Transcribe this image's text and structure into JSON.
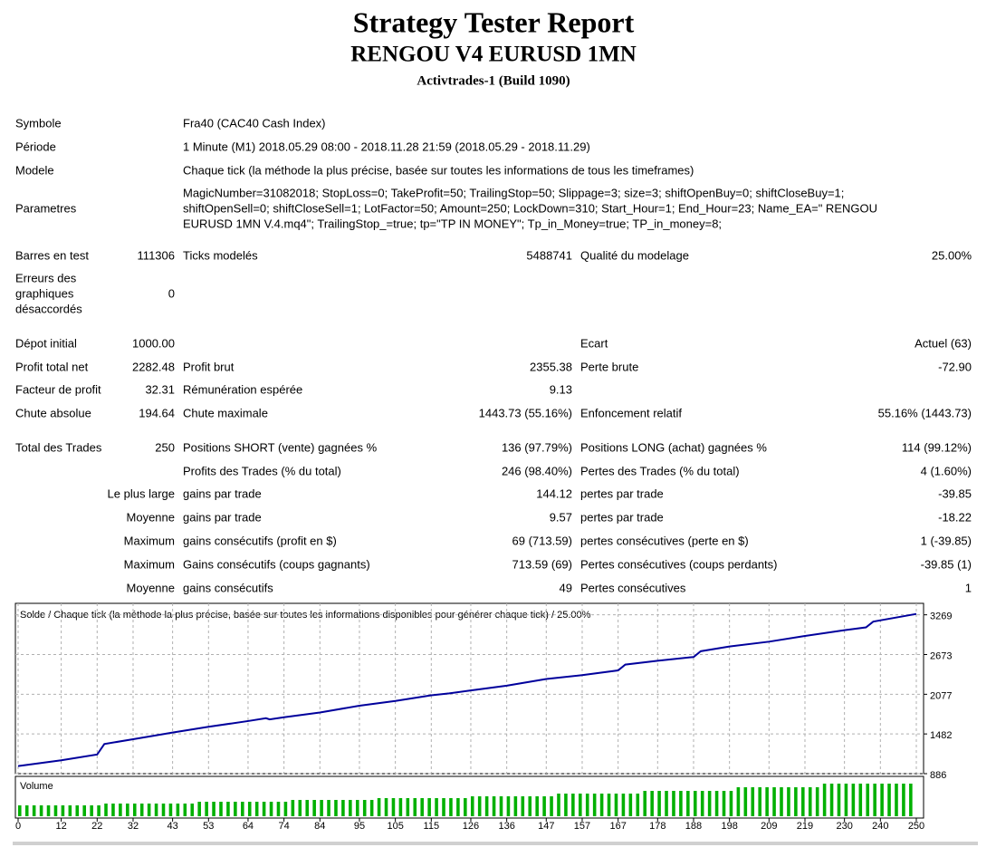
{
  "header": {
    "title": "Strategy Tester Report",
    "subtitle": "RENGOU V4 EURUSD 1MN",
    "server": "Activtrades-1 (Build 1090)"
  },
  "report": {
    "rows": [
      {
        "l1": "Symbole",
        "l2": "Fra40 (CAC40 Cash Index)"
      },
      {
        "l1": "Période",
        "l2": "1 Minute (M1) 2018.05.29 08:00 - 2018.11.28 21:59 (2018.05.29 - 2018.11.29)"
      },
      {
        "l1": "Modele",
        "l2": "Chaque tick (la méthode la plus précise, basée sur toutes les informations de tous les timeframes)"
      },
      {
        "l1": "Parametres",
        "l2": [
          "MagicNumber=31082018; StopLoss=0; TakeProfit=50; TrailingStop=50; Slippage=3; size=3; shiftOpenBuy=0; shiftCloseBuy=1;",
          "shiftOpenSell=0; shiftCloseSell=1; LotFactor=50; Amount=250; LockDown=310; Start_Hour=1; End_Hour=23; Name_EA=\" RENGOU",
          "EURUSD 1MN V.4.mq4\"; TrailingStop_=true; tp=\"TP IN MONEY\"; Tp_in_Money=true; TP_in_money=8;"
        ]
      },
      {
        "l1": "Barres en test",
        "v1": "111306",
        "l2": "Ticks modelés",
        "v2": "5488741",
        "l3": "Qualité du modelage",
        "v3": "25.00%"
      },
      {
        "l1": [
          "Erreurs des",
          "graphiques",
          "désaccordés"
        ],
        "v1": "0"
      },
      {
        "l1": "Dépot initial",
        "v1": "1000.00",
        "l3": "Ecart",
        "v3": "Actuel (63)"
      },
      {
        "l1": "Profit total net",
        "v1": "2282.48",
        "l2": "Profit brut",
        "v2": "2355.38",
        "l3": "Perte brute",
        "v3": "-72.90"
      },
      {
        "l1": "Facteur de profit",
        "v1": "32.31",
        "l2": "Rémunération espérée",
        "v2": "9.13"
      },
      {
        "l1": "Chute absolue",
        "v1": "194.64",
        "l2": "Chute maximale",
        "v2": "1443.73 (55.16%)",
        "l3": "Enfoncement relatif",
        "v3": "55.16% (1443.73)"
      },
      {
        "l1": "Total des Trades",
        "v1": "250",
        "l2": "Positions SHORT (vente) gagnées %",
        "v2": "136 (97.79%)",
        "l3": "Positions LONG (achat) gagnées %",
        "v3": "114 (99.12%)"
      },
      {
        "l2": "Profits des Trades (% du total)",
        "v2": "246 (98.40%)",
        "l3": "Pertes des Trades (% du total)",
        "v3": "4 (1.60%)"
      },
      {
        "l1": "Le plus large",
        "l2": "gains par trade",
        "v2": "144.12",
        "l3": "pertes par trade",
        "v3": "-39.85"
      },
      {
        "l1": "Moyenne",
        "l2": "gains par trade",
        "v2": "9.57",
        "l3": "pertes par trade",
        "v3": "-18.22"
      },
      {
        "l1": "Maximum",
        "l2": "gains consécutifs (profit en $)",
        "v2": "69 (713.59)",
        "l3": "pertes consécutives (perte en $)",
        "v3": "1 (-39.85)"
      },
      {
        "l1": "Maximum",
        "l2": "Gains consécutifs (coups gagnants)",
        "v2": "713.59 (69)",
        "l3": "Pertes consécutives (coups perdants)",
        "v3": "-39.85 (1)"
      },
      {
        "l1": "Moyenne",
        "l2": "gains consécutifs",
        "v2": "49",
        "l3": "Pertes consécutives",
        "v3": "1"
      }
    ]
  },
  "chart_data": {
    "type": "line",
    "title": "Solde / Chaque tick (la méthode la plus précise, basée sur toutes les informations disponibles pour générer chaque tick) / 25.00%",
    "x": [
      0,
      12,
      22,
      24,
      32,
      43,
      53,
      64,
      69,
      70,
      74,
      84,
      95,
      105,
      115,
      120,
      126,
      136,
      147,
      157,
      167,
      169,
      178,
      188,
      190,
      198,
      209,
      219,
      230,
      236,
      238,
      250
    ],
    "series": [
      {
        "color": "#00009c",
        "values": [
          1000,
          1087,
          1173,
          1331,
          1402,
          1503,
          1589,
          1675,
          1718,
          1700,
          1732,
          1804,
          1905,
          1976,
          2062,
          2091,
          2134,
          2206,
          2306,
          2364,
          2435,
          2522,
          2579,
          2636,
          2723,
          2794,
          2866,
          2952,
          3038,
          3081,
          3167,
          3282
        ]
      }
    ],
    "xlim": [
      0,
      250
    ],
    "xticks": [
      0,
      12,
      22,
      32,
      43,
      53,
      64,
      74,
      84,
      95,
      105,
      115,
      126,
      136,
      147,
      157,
      167,
      178,
      188,
      198,
      209,
      219,
      230,
      240,
      250
    ],
    "ylim": [
      886,
      3441
    ],
    "yticks": [
      886,
      1482,
      2077,
      2673,
      3269
    ],
    "grid": true,
    "volume": {
      "label": "Volume",
      "color": "#00b000",
      "values": [
        12,
        12,
        12,
        12,
        12,
        12,
        12,
        12,
        12,
        12,
        12,
        12,
        14,
        14,
        14,
        14,
        14,
        14,
        14,
        14,
        14,
        14,
        14,
        14,
        14,
        16,
        16,
        16,
        16,
        16,
        16,
        16,
        16,
        16,
        16,
        16,
        16,
        16,
        18,
        18,
        18,
        18,
        18,
        18,
        18,
        18,
        18,
        18,
        18,
        18,
        20,
        20,
        20,
        20,
        20,
        20,
        20,
        20,
        20,
        20,
        20,
        20,
        20,
        22,
        22,
        22,
        22,
        22,
        22,
        22,
        22,
        22,
        22,
        22,
        22,
        25,
        25,
        25,
        25,
        25,
        25,
        25,
        25,
        25,
        25,
        25,
        25,
        28,
        28,
        28,
        28,
        28,
        28,
        28,
        28,
        28,
        28,
        28,
        28,
        28,
        32,
        32,
        32,
        32,
        32,
        32,
        32,
        32,
        32,
        32,
        32,
        32,
        36,
        36,
        36,
        36,
        36,
        36,
        36,
        36,
        36,
        36,
        36,
        36,
        36
      ]
    }
  }
}
